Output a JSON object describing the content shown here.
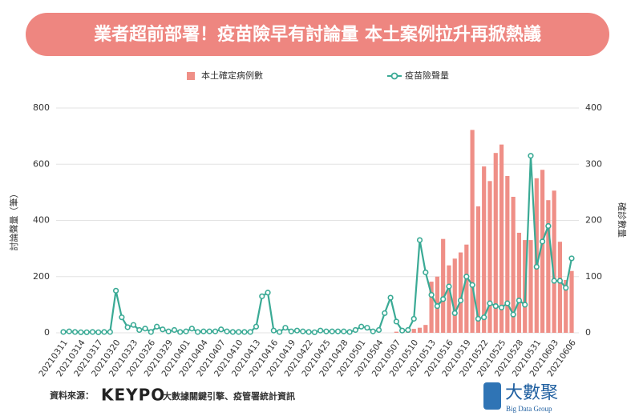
{
  "chart_data": {
    "type": "combo",
    "title": "業者超前部署！疫苗險早有討論量 本土案例拉升再掀熱議",
    "y_label": "討論聲量（筆）",
    "y2_label": "確診數量",
    "categories": [
      "20210311",
      null,
      null,
      "20210314",
      null,
      null,
      "20210317",
      null,
      null,
      "20210320",
      null,
      null,
      "20210323",
      null,
      null,
      "20210326",
      null,
      null,
      "20210329",
      null,
      null,
      "20210401",
      null,
      null,
      "20210404",
      null,
      null,
      "20210407",
      null,
      null,
      "20210410",
      null,
      null,
      "20210413",
      null,
      null,
      "20210416",
      null,
      null,
      "20210419",
      null,
      null,
      "20210422",
      null,
      null,
      "20210425",
      null,
      null,
      "20210428",
      null,
      null,
      "20210501",
      null,
      null,
      "20210504",
      null,
      null,
      "20210507",
      null,
      null,
      "20210510",
      null,
      null,
      "20210513",
      null,
      null,
      "20210516",
      null,
      null,
      "20210519",
      null,
      null,
      "20210522",
      null,
      null,
      "20210525",
      null,
      null,
      "20210528",
      null,
      null,
      "20210531",
      null,
      null,
      "20210603",
      null,
      null,
      "20210606"
    ],
    "series": [
      {
        "name": "本土確定病例數",
        "type": "bar",
        "axis": "y2",
        "color": "#ef8f87",
        "values": [
          0,
          0,
          0,
          0,
          0,
          0,
          0,
          0,
          0,
          0,
          0,
          0,
          0,
          0,
          0,
          0,
          0,
          0,
          0,
          0,
          0,
          0,
          0,
          0,
          0,
          0,
          0,
          0,
          0,
          0,
          0,
          0,
          0,
          0,
          0,
          0,
          0,
          0,
          0,
          0,
          0,
          0,
          0,
          0,
          0,
          0,
          0,
          0,
          0,
          0,
          0,
          0,
          0,
          0,
          0,
          0,
          0,
          2,
          3,
          5,
          7,
          9,
          14,
          91,
          100,
          167,
          120,
          132,
          143,
          157,
          361,
          225,
          296,
          270,
          320,
          335,
          279,
          242,
          178,
          165,
          165,
          275,
          290,
          236,
          253,
          162,
          94,
          110
        ]
      },
      {
        "name": "疫苗險聲量",
        "type": "line",
        "color": "#3aaa95",
        "values": [
          3,
          5,
          3,
          2,
          2,
          3,
          2,
          3,
          3,
          150,
          55,
          20,
          28,
          10,
          15,
          3,
          22,
          12,
          5,
          10,
          3,
          5,
          15,
          3,
          5,
          5,
          5,
          12,
          5,
          3,
          3,
          3,
          3,
          22,
          130,
          143,
          8,
          3,
          18,
          5,
          8,
          5,
          3,
          2,
          8,
          5,
          5,
          5,
          5,
          3,
          10,
          22,
          18,
          5,
          10,
          70,
          125,
          40,
          8,
          10,
          50,
          330,
          215,
          135,
          95,
          120,
          165,
          70,
          115,
          200,
          170,
          50,
          55,
          105,
          95,
          90,
          105,
          65,
          115,
          100,
          630,
          235,
          325,
          380,
          185,
          185,
          160,
          265
        ]
      }
    ],
    "ylim": [
      0,
      800
    ],
    "yticks": [
      0,
      200,
      400,
      600,
      800
    ],
    "y2lim": [
      0,
      400
    ],
    "y2ticks": [
      0,
      100,
      200,
      300,
      400
    ],
    "grid": true
  },
  "footer": {
    "source_label": "資料來源：",
    "brand": "KEYPO",
    "source_text": "大數據關鍵引擎、疫管署統計資訊",
    "logo": "大數聚",
    "logo_sub": "Big Data Group"
  }
}
